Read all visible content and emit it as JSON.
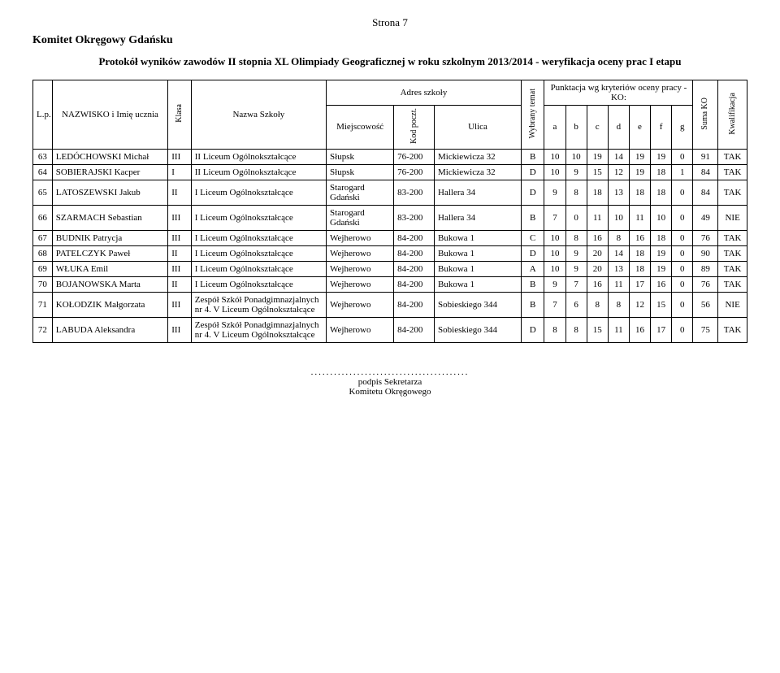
{
  "page_label": "Strona 7",
  "committee": "Komitet Okręgowy Gdańsku",
  "protocol_title": "Protokół wyników zawodów II stopnia XL Olimpiady Geograficznej w roku szkolnym 2013/2014 - weryfikacja oceny prac I etapu",
  "header": {
    "lp": "L.p.",
    "name": "NAZWISKO i Imię ucznia",
    "klasa": "Klasa",
    "school": "Nazwa Szkoły",
    "address": "Adres szkoły",
    "city": "Miejscowość",
    "kod": "Kod poczt.",
    "ulica": "Ulica",
    "temat": "Wybrany temat",
    "scoring": "Punktacja wg kryteriów oceny pracy - KO:",
    "a": "a",
    "b": "b",
    "c": "c",
    "d": "d",
    "e": "e",
    "f": "f",
    "g": "g",
    "suma": "Suma KO",
    "kwal": "Kwalifikacja"
  },
  "rows": [
    {
      "lp": "63",
      "name": "LEDÓCHOWSKI Michał",
      "klasa": "III",
      "school": "II Liceum Ogólnokształcące",
      "city": "Słupsk",
      "kod": "76-200",
      "ulica": "Mickiewicza 32",
      "temat": "B",
      "a": "10",
      "b": "10",
      "c": "19",
      "d": "14",
      "e": "19",
      "f": "19",
      "g": "0",
      "suma": "91",
      "kwal": "TAK"
    },
    {
      "lp": "64",
      "name": "SOBIERAJSKI Kacper",
      "klasa": "I",
      "school": "II Liceum Ogólnokształcące",
      "city": "Słupsk",
      "kod": "76-200",
      "ulica": "Mickiewicza 32",
      "temat": "D",
      "a": "10",
      "b": "9",
      "c": "15",
      "d": "12",
      "e": "19",
      "f": "18",
      "g": "1",
      "suma": "84",
      "kwal": "TAK"
    },
    {
      "lp": "65",
      "name": "LATOSZEWSKI Jakub",
      "klasa": "II",
      "school": "I Liceum Ogólnokształcące",
      "city": "Starogard Gdański",
      "kod": "83-200",
      "ulica": "Hallera 34",
      "temat": "D",
      "a": "9",
      "b": "8",
      "c": "18",
      "d": "13",
      "e": "18",
      "f": "18",
      "g": "0",
      "suma": "84",
      "kwal": "TAK"
    },
    {
      "lp": "66",
      "name": "SZARMACH Sebastian",
      "klasa": "III",
      "school": "I Liceum Ogólnokształcące",
      "city": "Starogard Gdański",
      "kod": "83-200",
      "ulica": "Hallera 34",
      "temat": "B",
      "a": "7",
      "b": "0",
      "c": "11",
      "d": "10",
      "e": "11",
      "f": "10",
      "g": "0",
      "suma": "49",
      "kwal": "NIE"
    },
    {
      "lp": "67",
      "name": "BUDNIK Patrycja",
      "klasa": "III",
      "school": "I Liceum Ogólnokształcące",
      "city": "Wejherowo",
      "kod": "84-200",
      "ulica": "Bukowa 1",
      "temat": "C",
      "a": "10",
      "b": "8",
      "c": "16",
      "d": "8",
      "e": "16",
      "f": "18",
      "g": "0",
      "suma": "76",
      "kwal": "TAK"
    },
    {
      "lp": "68",
      "name": "PATELCZYK Paweł",
      "klasa": "II",
      "school": "I Liceum Ogólnokształcące",
      "city": "Wejherowo",
      "kod": "84-200",
      "ulica": "Bukowa 1",
      "temat": "D",
      "a": "10",
      "b": "9",
      "c": "20",
      "d": "14",
      "e": "18",
      "f": "19",
      "g": "0",
      "suma": "90",
      "kwal": "TAK"
    },
    {
      "lp": "69",
      "name": "WŁUKA Emil",
      "klasa": "III",
      "school": "I Liceum Ogólnokształcące",
      "city": "Wejherowo",
      "kod": "84-200",
      "ulica": "Bukowa 1",
      "temat": "A",
      "a": "10",
      "b": "9",
      "c": "20",
      "d": "13",
      "e": "18",
      "f": "19",
      "g": "0",
      "suma": "89",
      "kwal": "TAK"
    },
    {
      "lp": "70",
      "name": "BOJANOWSKA Marta",
      "klasa": "II",
      "school": "I Liceum Ogólnokształcące",
      "city": "Wejherowo",
      "kod": "84-200",
      "ulica": "Bukowa 1",
      "temat": "B",
      "a": "9",
      "b": "7",
      "c": "16",
      "d": "11",
      "e": "17",
      "f": "16",
      "g": "0",
      "suma": "76",
      "kwal": "TAK"
    },
    {
      "lp": "71",
      "name": "KOŁODZIK Małgorzata",
      "klasa": "III",
      "school": "Zespół Szkół Ponadgimnazjalnych nr 4. V Liceum Ogólnokształcące",
      "city": "Wejherowo",
      "kod": "84-200",
      "ulica": "Sobieskiego 344",
      "temat": "B",
      "a": "7",
      "b": "6",
      "c": "8",
      "d": "8",
      "e": "12",
      "f": "15",
      "g": "0",
      "suma": "56",
      "kwal": "NIE"
    },
    {
      "lp": "72",
      "name": "LABUDA Aleksandra",
      "klasa": "III",
      "school": "Zespół Szkół Ponadgimnazjalnych nr 4. V Liceum Ogólnokształcące",
      "city": "Wejherowo",
      "kod": "84-200",
      "ulica": "Sobieskiego 344",
      "temat": "D",
      "a": "8",
      "b": "8",
      "c": "15",
      "d": "11",
      "e": "16",
      "f": "17",
      "g": "0",
      "suma": "75",
      "kwal": "TAK"
    }
  ],
  "footer": {
    "dots": ".........................................",
    "line1": "podpis Sekretarza",
    "line2": "Komitetu Okręgowego"
  }
}
